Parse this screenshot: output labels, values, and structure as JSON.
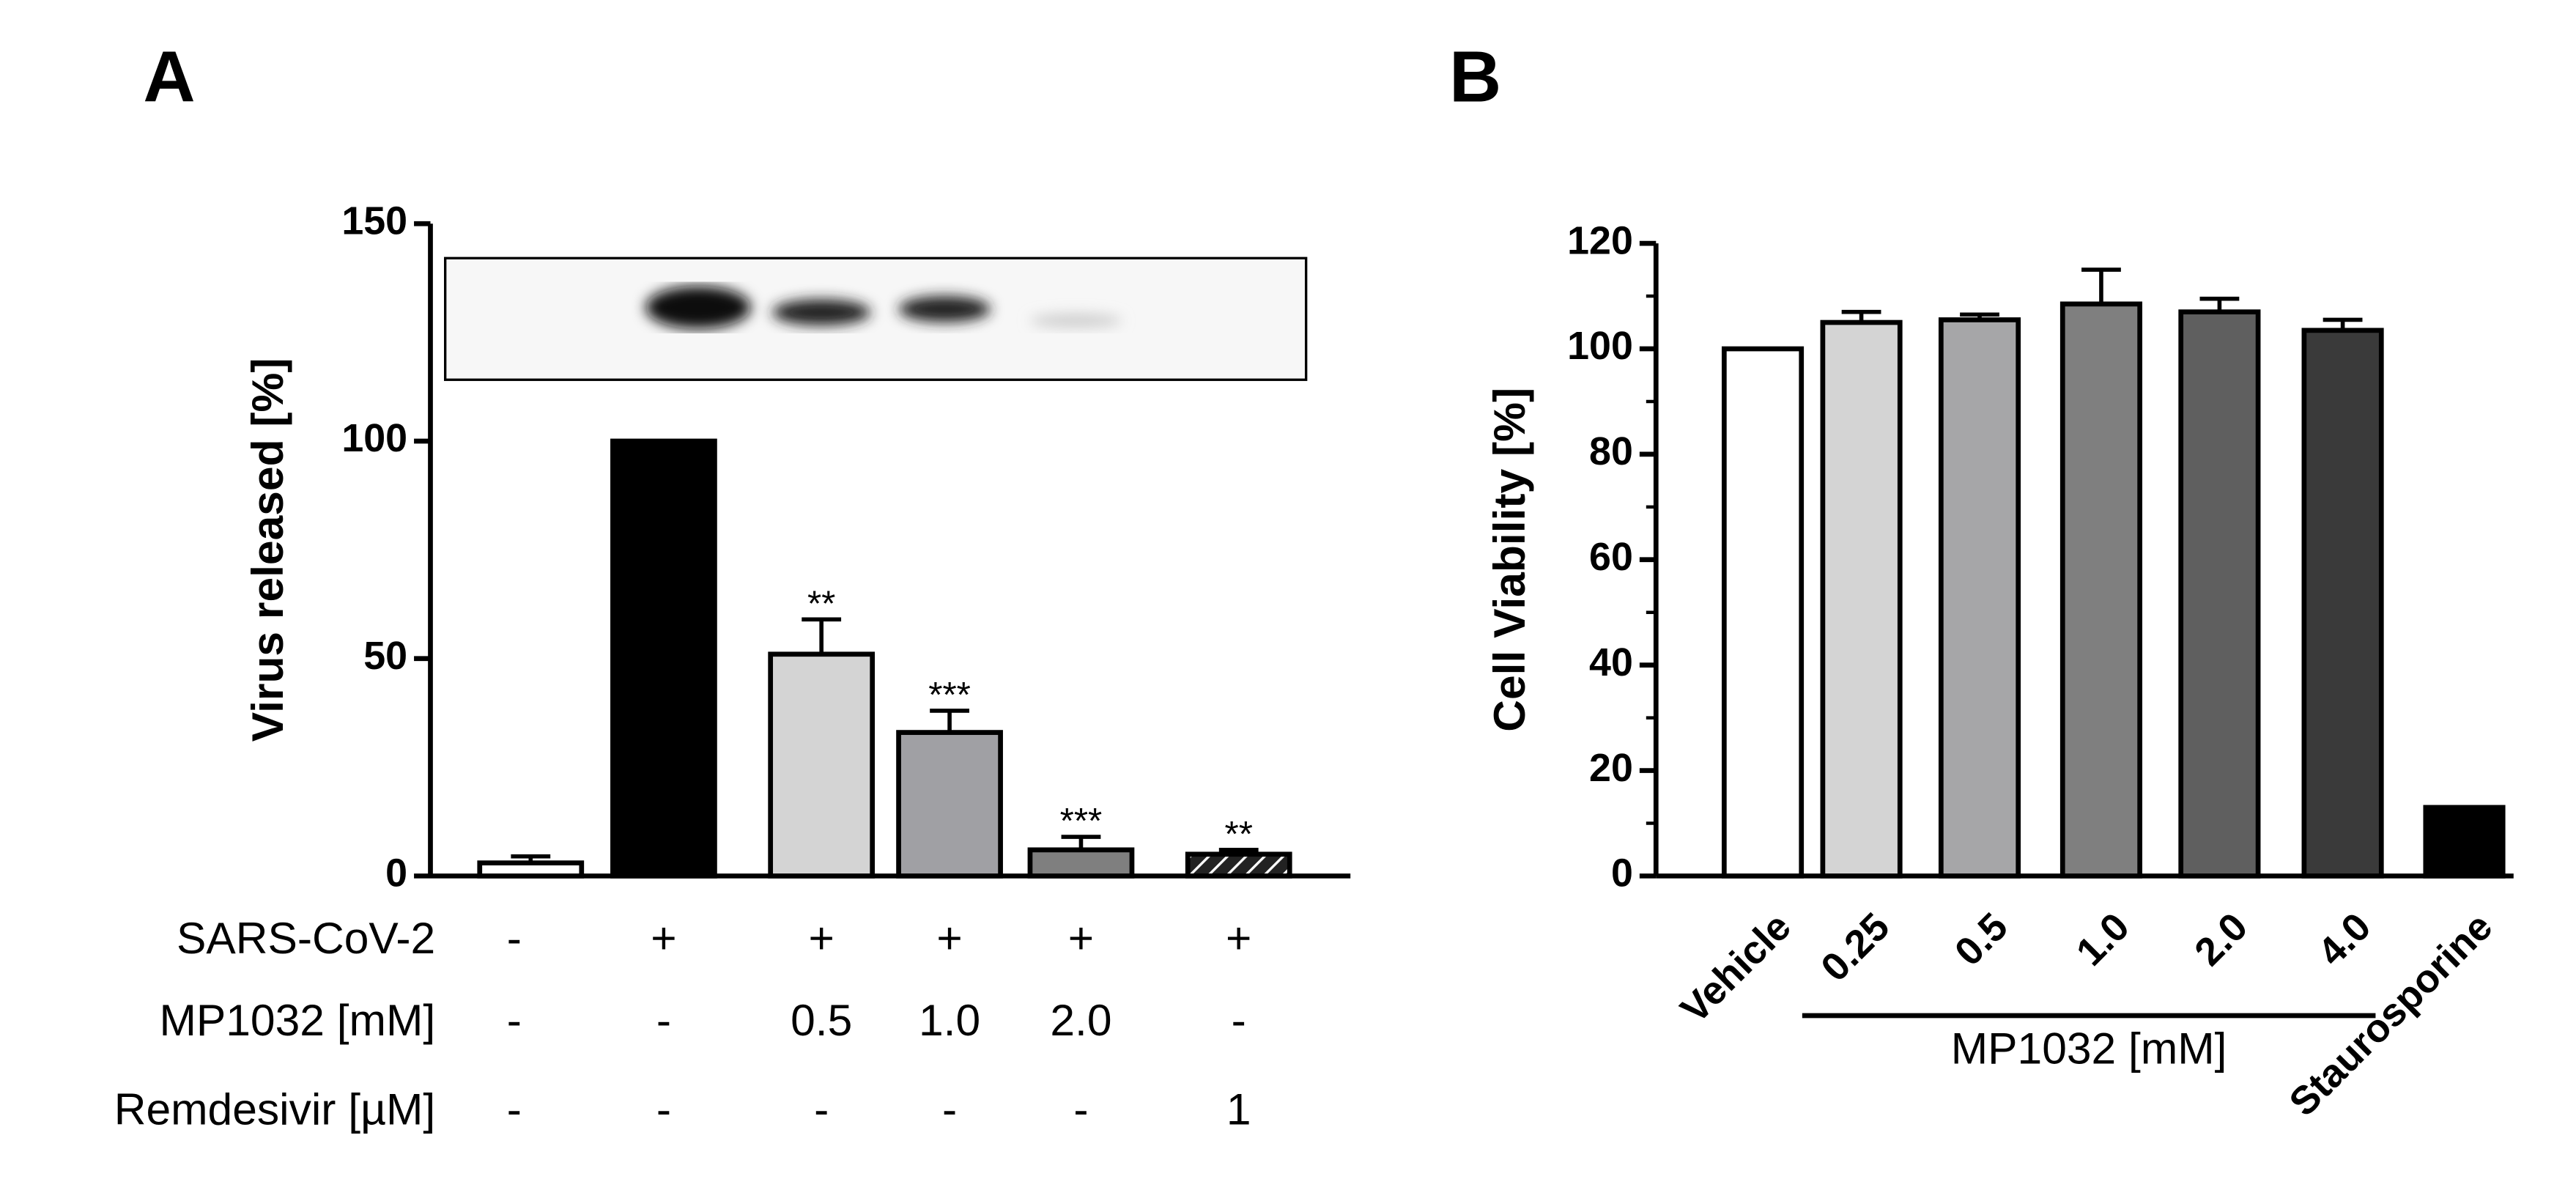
{
  "chart_data": [
    {
      "type": "bar",
      "panel": "A",
      "ylabel": "Virus released [%]",
      "values": [
        3,
        100,
        51,
        33,
        6,
        5
      ],
      "errors": [
        1.5,
        0,
        8,
        5,
        3,
        1
      ],
      "significance": [
        null,
        null,
        "**",
        "***",
        "***",
        "**"
      ],
      "colors": [
        "#ffffff",
        "#000000",
        "#d4d4d4",
        "#a0a0a4",
        "#7f7f7f",
        "#222222"
      ],
      "hatch": [
        false,
        false,
        false,
        false,
        false,
        true
      ],
      "ylim": [
        0,
        150
      ],
      "yticks": [
        0,
        50,
        100,
        150
      ],
      "table_rows": [
        {
          "label": "SARS-CoV-2",
          "cells": [
            "-",
            "+",
            "+",
            "+",
            "+",
            "+"
          ]
        },
        {
          "label": "MP1032 [mM]",
          "cells": [
            "-",
            "-",
            "0.5",
            "1.0",
            "2.0",
            "-"
          ]
        },
        {
          "label": "Remdesivir [µM]",
          "cells": [
            "-",
            "-",
            "-",
            "-",
            "-",
            "1"
          ]
        }
      ]
    },
    {
      "type": "bar",
      "panel": "B",
      "ylabel": "Cell Viability [%]",
      "categories": [
        "Vehicle",
        "0.25",
        "0.5",
        "1.0",
        "2.0",
        "4.0",
        "Staurosporine"
      ],
      "values": [
        100,
        105,
        105.5,
        108.5,
        107,
        103.5,
        13
      ],
      "errors": [
        0,
        2,
        1,
        6.5,
        2.5,
        2,
        0
      ],
      "colors": [
        "#ffffff",
        "#d4d4d4",
        "#a6a6a8",
        "#7f7f7f",
        "#5f5f5f",
        "#3a3a3a",
        "#000000"
      ],
      "ylim": [
        0,
        120
      ],
      "yticks": [
        0,
        20,
        40,
        60,
        80,
        100,
        120
      ],
      "yminorticks": [
        10,
        30,
        50,
        70,
        90,
        110
      ],
      "group": {
        "label": "MP1032 [mM]",
        "from": 1,
        "to": 5
      }
    }
  ]
}
